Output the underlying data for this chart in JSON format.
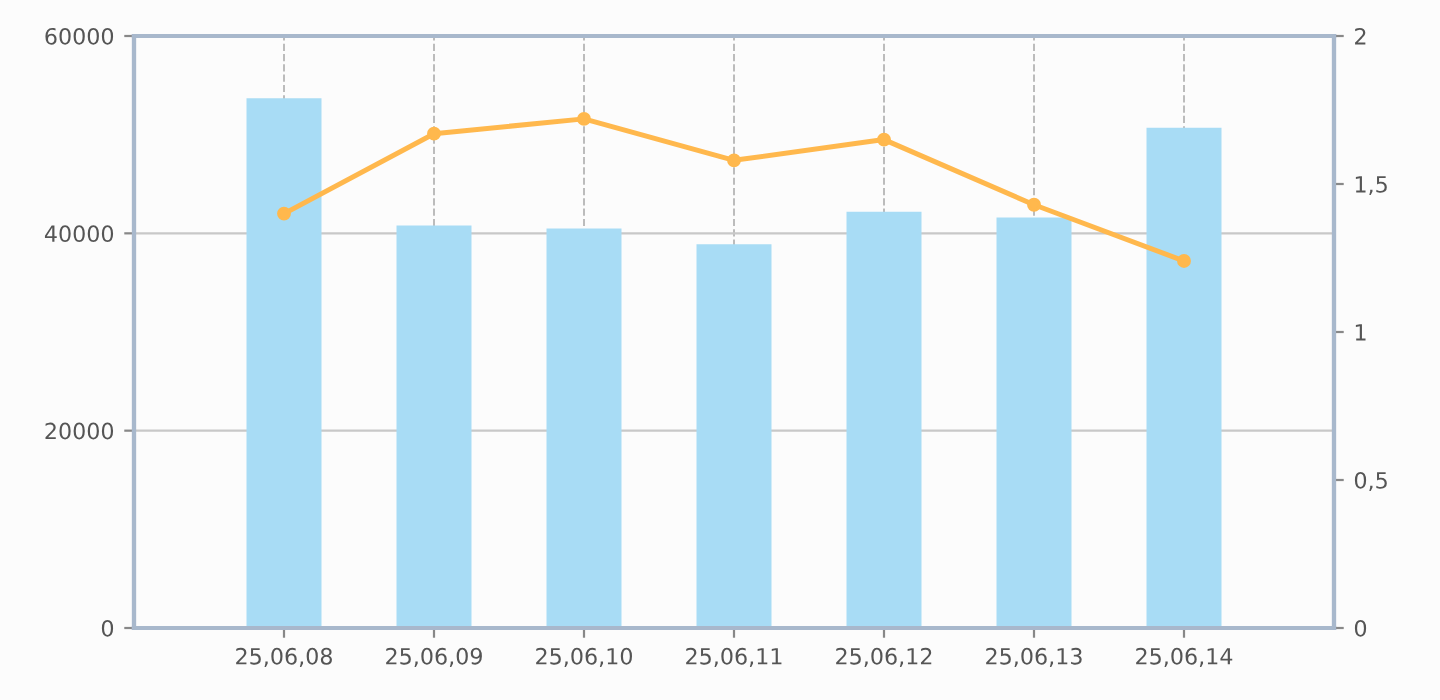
{
  "chart_data": {
    "type": "bar",
    "categories": [
      "25,06,08",
      "25,06,09",
      "25,06,10",
      "25,06,11",
      "25,06,12",
      "25,06,13",
      "25,06,14"
    ],
    "series": [
      {
        "color": "#a8dcf5",
        "values": [
          53700,
          40800,
          40500,
          38900,
          42200,
          41600,
          50700
        ]
      },
      {
        "type": "line",
        "axis": "y2",
        "color": "#ffb84d",
        "marker": "circle",
        "values": [
          1.4,
          1.67,
          1.72,
          1.58,
          1.65,
          1.43,
          1.24
        ]
      }
    ],
    "ylim": [
      0,
      60000
    ],
    "yticks": [
      0,
      20000,
      40000,
      60000
    ],
    "y2lim": [
      0,
      2
    ],
    "y2ticks": [
      0,
      {
        "value": 0.5,
        "label": "0,5"
      },
      1,
      {
        "value": 1.5,
        "label": "1,5"
      },
      2
    ],
    "grid": true
  }
}
